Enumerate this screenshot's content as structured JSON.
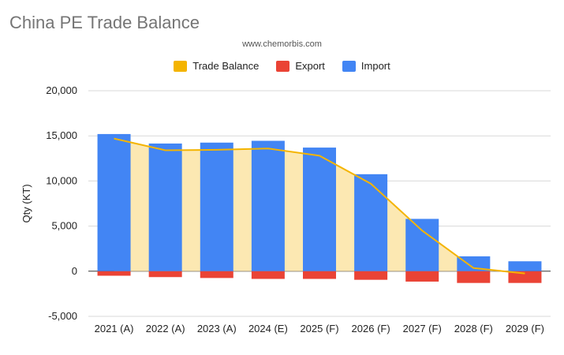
{
  "chart_data": {
    "type": "bar",
    "title": "China PE Trade Balance",
    "subtitle": "www.chemorbis.com",
    "xlabel": "",
    "ylabel": "Qty (KT)",
    "ylim": [
      -5000,
      20000
    ],
    "yticks": [
      -5000,
      0,
      5000,
      10000,
      15000,
      20000
    ],
    "ytick_labels": [
      "-5,000",
      "0",
      "5,000",
      "10,000",
      "15,000",
      "20,000"
    ],
    "grid": true,
    "legend_position": "top",
    "categories": [
      "2021 (A)",
      "2022 (A)",
      "2023 (A)",
      "2024 (E)",
      "2025 (F)",
      "2026 (F)",
      "2027 (F)",
      "2028 (F)",
      "2029 (F)"
    ],
    "series": [
      {
        "name": "Trade Balance",
        "type": "line-area",
        "color": "#F4B400",
        "area_color": "#FCE8B2",
        "values": [
          14700,
          13400,
          13450,
          13600,
          12800,
          9700,
          4500,
          350,
          -250
        ]
      },
      {
        "name": "Export",
        "type": "bar",
        "color": "#EA4335",
        "values": [
          -500,
          -650,
          -750,
          -850,
          -850,
          -950,
          -1150,
          -1300,
          -1300
        ]
      },
      {
        "name": "Import",
        "type": "bar",
        "color": "#4285F4",
        "values": [
          15200,
          14150,
          14250,
          14450,
          13700,
          10750,
          5800,
          1650,
          1100
        ]
      }
    ]
  }
}
